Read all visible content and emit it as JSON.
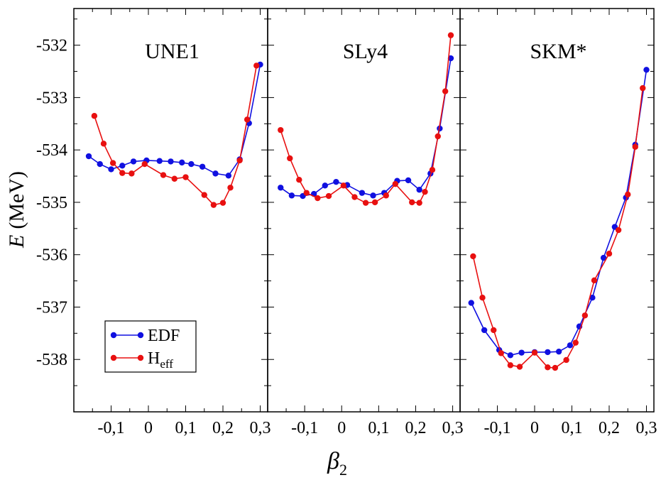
{
  "chart_data": {
    "type": "line",
    "ylabel_italic": "E",
    "ylabel_unit": "(MeV)",
    "xlabel_main": "β",
    "xlabel_sub": "2",
    "ylim": [
      -539,
      -531.3
    ],
    "xlim": [
      -0.2,
      0.32
    ],
    "yticks": [
      -532,
      -533,
      -534,
      -535,
      -536,
      -537,
      -538
    ],
    "ytick_labels": [
      "-532",
      "-533",
      "-534",
      "-535",
      "-536",
      "-537",
      "-538"
    ],
    "xticks": [
      -0.1,
      0,
      0.1,
      0.2,
      0.3
    ],
    "xtick_labels": [
      "-0,1",
      "0",
      "0,1",
      "0,2",
      "0,3"
    ],
    "colors": {
      "EDF": "#1010e0",
      "Heff": "#e81010"
    },
    "legend": [
      {
        "key": "EDF",
        "label": "EDF",
        "sub": ""
      },
      {
        "key": "Heff",
        "label": "H",
        "sub": "eff"
      }
    ],
    "panels": [
      {
        "title": "UNE1",
        "series": [
          {
            "key": "EDF",
            "name": "EDF",
            "x": [
              -0.16,
              -0.13,
              -0.1,
              -0.07,
              -0.04,
              -0.005,
              0.03,
              0.06,
              0.09,
              0.115,
              0.145,
              0.18,
              0.215,
              0.245,
              0.27,
              0.3
            ],
            "y": [
              -534.12,
              -534.27,
              -534.37,
              -534.3,
              -534.22,
              -534.2,
              -534.21,
              -534.22,
              -534.24,
              -534.27,
              -534.32,
              -534.45,
              -534.49,
              -534.18,
              -533.49,
              -532.37
            ]
          },
          {
            "key": "Heff",
            "name": "Heff",
            "x": [
              -0.145,
              -0.12,
              -0.095,
              -0.07,
              -0.045,
              -0.01,
              0.04,
              0.07,
              0.1,
              0.15,
              0.175,
              0.2,
              0.22,
              0.245,
              0.265,
              0.29
            ],
            "y": [
              -533.35,
              -533.88,
              -534.25,
              -534.44,
              -534.45,
              -534.27,
              -534.48,
              -534.55,
              -534.52,
              -534.86,
              -535.05,
              -535.01,
              -534.72,
              -534.2,
              -533.42,
              -532.39
            ]
          }
        ]
      },
      {
        "title": "SLy4",
        "series": [
          {
            "key": "EDF",
            "name": "EDF",
            "x": [
              -0.165,
              -0.135,
              -0.105,
              -0.075,
              -0.045,
              -0.015,
              0.015,
              0.055,
              0.085,
              0.115,
              0.15,
              0.18,
              0.21,
              0.24,
              0.265,
              0.295
            ],
            "y": [
              -534.72,
              -534.87,
              -534.88,
              -534.84,
              -534.68,
              -534.61,
              -534.67,
              -534.82,
              -534.87,
              -534.82,
              -534.59,
              -534.58,
              -534.76,
              -534.45,
              -533.59,
              -532.25
            ]
          },
          {
            "key": "Heff",
            "name": "Heff",
            "x": [
              -0.165,
              -0.14,
              -0.115,
              -0.095,
              -0.065,
              -0.035,
              0.005,
              0.035,
              0.065,
              0.09,
              0.12,
              0.145,
              0.19,
              0.21,
              0.225,
              0.245,
              0.26,
              0.28,
              0.295
            ],
            "y": [
              -533.62,
              -534.16,
              -534.57,
              -534.82,
              -534.92,
              -534.88,
              -534.68,
              -534.9,
              -535.01,
              -535.0,
              -534.87,
              -534.65,
              -535.0,
              -535.01,
              -534.8,
              -534.38,
              -533.74,
              -532.88,
              -531.81
            ]
          }
        ]
      },
      {
        "title": "SKM*",
        "series": [
          {
            "key": "EDF",
            "name": "EDF",
            "x": [
              -0.17,
              -0.135,
              -0.095,
              -0.065,
              -0.035,
              0.0,
              0.035,
              0.065,
              0.095,
              0.12,
              0.155,
              0.185,
              0.215,
              0.245,
              0.27,
              0.3
            ],
            "y": [
              -536.92,
              -537.44,
              -537.82,
              -537.92,
              -537.87,
              -537.86,
              -537.86,
              -537.85,
              -537.73,
              -537.37,
              -536.82,
              -536.06,
              -535.47,
              -534.91,
              -533.9,
              -532.47
            ]
          },
          {
            "key": "Heff",
            "name": "Heff",
            "x": [
              -0.165,
              -0.14,
              -0.11,
              -0.09,
              -0.065,
              -0.04,
              0.0,
              0.035,
              0.055,
              0.085,
              0.11,
              0.135,
              0.16,
              0.2,
              0.225,
              0.25,
              0.27,
              0.29
            ],
            "y": [
              -536.03,
              -536.82,
              -537.44,
              -537.88,
              -538.11,
              -538.14,
              -537.87,
              -538.15,
              -538.16,
              -538.01,
              -537.68,
              -537.16,
              -536.49,
              -535.98,
              -535.53,
              -534.85,
              -533.94,
              -532.82
            ]
          }
        ]
      }
    ]
  }
}
